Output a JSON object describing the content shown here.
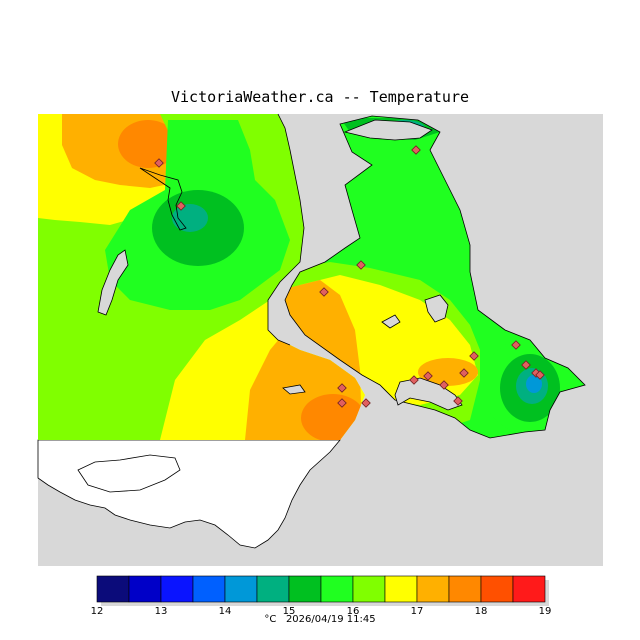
{
  "title": "VictoriaWeather.ca -- Temperature",
  "legend": {
    "unit": "°C",
    "timestamp": "2026/04/19 11:45",
    "ticks": [
      "12",
      "13",
      "14",
      "15",
      "16",
      "17",
      "18",
      "19"
    ],
    "colors": [
      "#0b0b7a",
      "#0000c8",
      "#0a14ff",
      "#0060ff",
      "#0098d8",
      "#00b080",
      "#00c020",
      "#20ff20",
      "#80ff00",
      "#ffff00",
      "#ffb000",
      "#ff8800",
      "#ff5000",
      "#ff1a1a"
    ]
  },
  "colors": {
    "water": "#d8d8d8",
    "outside": "#ffffff"
  }
}
